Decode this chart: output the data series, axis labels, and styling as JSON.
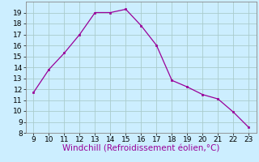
{
  "x": [
    9,
    10,
    11,
    12,
    13,
    14,
    15,
    16,
    17,
    18,
    19,
    20,
    21,
    22,
    23
  ],
  "y": [
    11.7,
    13.8,
    15.3,
    17.0,
    19.0,
    19.0,
    19.3,
    17.8,
    16.0,
    12.8,
    12.2,
    11.5,
    11.1,
    9.9,
    8.5
  ],
  "line_color": "#990099",
  "marker_color": "#990099",
  "bg_color": "#cceeff",
  "grid_color": "#aacccc",
  "xlabel": "Windchill (Refroidissement éolien,°C)",
  "xlabel_color": "#990099",
  "xlim": [
    8.5,
    23.5
  ],
  "ylim": [
    8,
    20
  ],
  "xticks": [
    9,
    10,
    11,
    12,
    13,
    14,
    15,
    16,
    17,
    18,
    19,
    20,
    21,
    22,
    23
  ],
  "yticks": [
    8,
    9,
    10,
    11,
    12,
    13,
    14,
    15,
    16,
    17,
    18,
    19
  ],
  "tick_label_fontsize": 6.5,
  "xlabel_fontsize": 7.5
}
